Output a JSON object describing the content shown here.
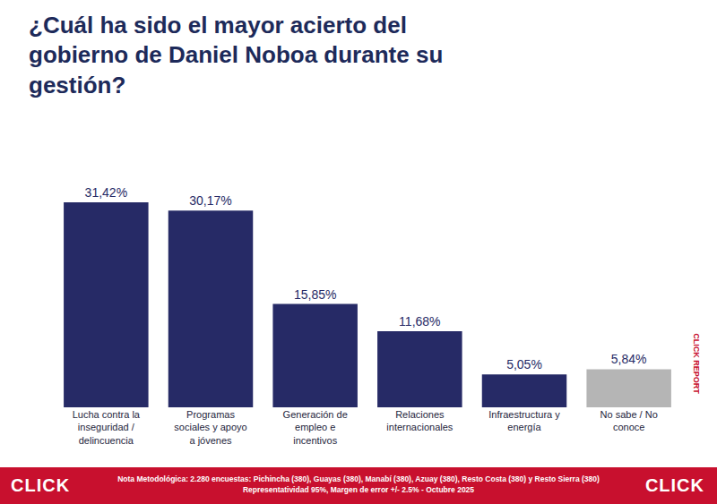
{
  "chart_data": {
    "type": "bar",
    "title": "¿Cuál ha sido el mayor acierto del gobierno de Daniel Noboa durante su gestión?",
    "categories": [
      "Lucha contra la inseguridad / delincuencia",
      "Programas sociales y apoyo a jóvenes",
      "Generación de empleo e incentivos",
      "Relaciones internacionales",
      "Infraestructura y energía",
      "No sabe / No conoce"
    ],
    "values": [
      31.42,
      30.17,
      15.85,
      11.68,
      5.05,
      5.84
    ],
    "value_labels": [
      "31,42%",
      "30,17%",
      "15,85%",
      "11,68%",
      "5,05%",
      "5,84%"
    ],
    "colors": [
      "#262a66",
      "#262a66",
      "#262a66",
      "#262a66",
      "#262a66",
      "#b5b5b5"
    ],
    "ylim": [
      0,
      35
    ],
    "data_labels": true,
    "tick_labels": "x",
    "grid": false,
    "annotations": [
      "Nota Metodológica: 2.280 encuestas: Pichincha (380), Guayas (380), Manabí (380), Azuay (380), Resto Costa (380) y Resto Sierra (380)",
      "Representatividad 95%, Margen de error +/- 2.5% - Octubre 2025",
      "CLICK REPORT",
      "CLICK"
    ]
  }
}
